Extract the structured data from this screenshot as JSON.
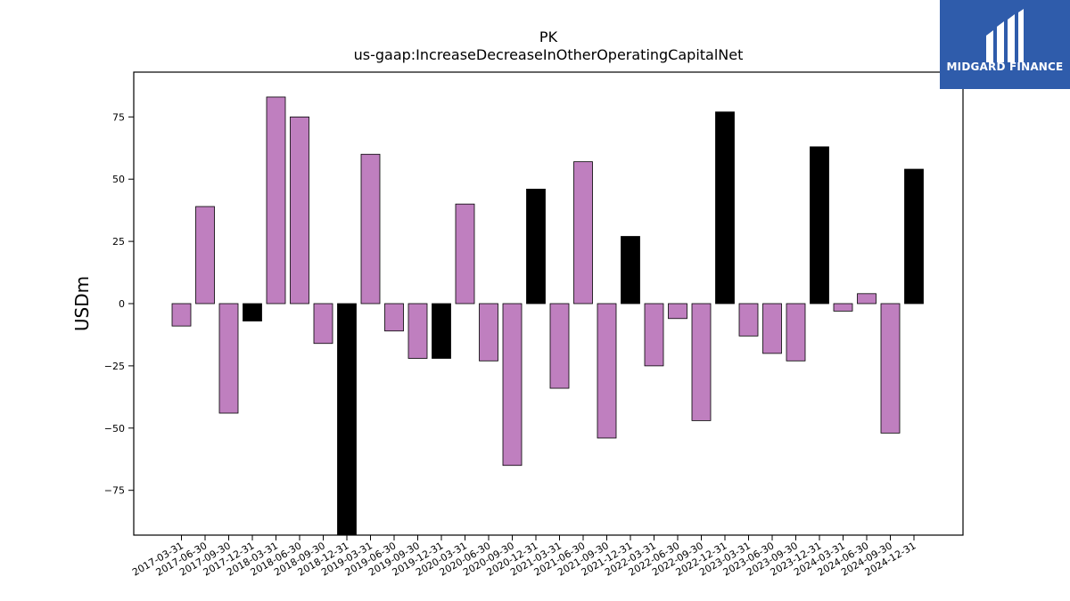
{
  "brand": {
    "name": "MIDGARD FINANCE",
    "background": "#2f5cab",
    "icon": "midgard-m-logo-icon"
  },
  "colors": {
    "bar_normal": "#bf7fbf",
    "bar_highlight": "#000000",
    "bar_edge": "#000000"
  },
  "chart_data": {
    "type": "bar",
    "title": "PK",
    "subtitle": "us-gaap:IncreaseDecreaseInOtherOperatingCapitalNet",
    "xlabel": "",
    "ylabel": "USDm",
    "ylim": [
      -93,
      93
    ],
    "yticks": [
      -75,
      -50,
      -25,
      0,
      25,
      50,
      75
    ],
    "grid": false,
    "legend": "none",
    "categories": [
      "2017-03-31",
      "2017-06-30",
      "2017-09-30",
      "2017-12-31",
      "2018-03-31",
      "2018-06-30",
      "2018-09-30",
      "2018-12-31",
      "2019-03-31",
      "2019-06-30",
      "2019-09-30",
      "2019-12-31",
      "2020-03-31",
      "2020-06-30",
      "2020-09-30",
      "2020-12-31",
      "2021-03-31",
      "2021-06-30",
      "2021-09-30",
      "2021-12-31",
      "2022-03-31",
      "2022-06-30",
      "2022-09-30",
      "2022-12-31",
      "2023-03-31",
      "2023-06-30",
      "2023-09-30",
      "2023-12-31",
      "2024-03-31",
      "2024-06-30",
      "2024-09-30",
      "2024-12-31"
    ],
    "values": [
      -9,
      39,
      -44,
      -7,
      83,
      75,
      -16,
      -95,
      60,
      -11,
      -22,
      -22,
      40,
      -23,
      -65,
      46,
      -34,
      57,
      -54,
      27,
      -25,
      -6,
      -47,
      77,
      -13,
      -20,
      -23,
      63,
      -3,
      4,
      -52,
      54
    ],
    "highlight": [
      false,
      false,
      false,
      true,
      false,
      false,
      false,
      true,
      false,
      false,
      false,
      true,
      false,
      false,
      false,
      true,
      false,
      false,
      false,
      true,
      false,
      false,
      false,
      true,
      false,
      false,
      false,
      true,
      false,
      false,
      false,
      true
    ]
  }
}
